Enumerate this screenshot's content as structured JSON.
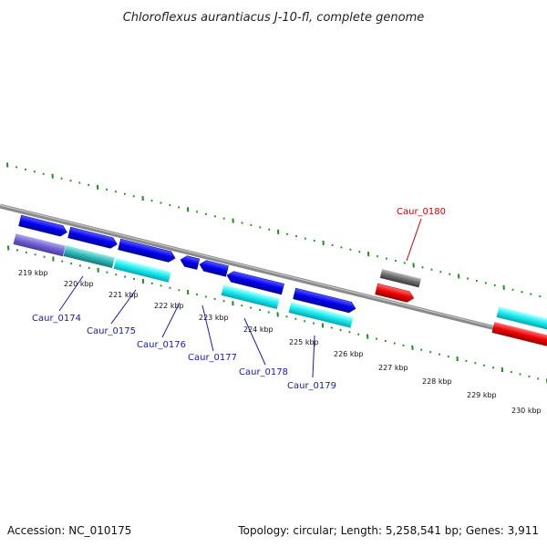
{
  "title": "Chloroflexus aurantiacus J-10-fl, complete genome",
  "footer": {
    "accession": "Accession: NC_010175",
    "summary": "Topology: circular; Length: 5,258,541 bp; Genes: 3,911"
  },
  "colors": {
    "backbone": "#8a8a8a",
    "ticks": "#1e8c1e",
    "label_blue": "#1a1aa8",
    "label_red": "#cc0000"
  },
  "tick_labels": [
    "219 kbp",
    "220 kbp",
    "221 kbp",
    "222 kbp",
    "223 kbp",
    "224 kbp",
    "225 kbp",
    "226 kbp",
    "227 kbp",
    "228 kbp",
    "229 kbp",
    "230 kbp"
  ],
  "gene_labels": [
    {
      "text": "Caur_0174",
      "color": "#1a1aa8"
    },
    {
      "text": "Caur_0175",
      "color": "#1a1aa8"
    },
    {
      "text": "Caur_0176",
      "color": "#1a1aa8"
    },
    {
      "text": "Caur_0177",
      "color": "#1a1aa8"
    },
    {
      "text": "Caur_0178",
      "color": "#1a1aa8"
    },
    {
      "text": "Caur_0179",
      "color": "#1a1aa8"
    },
    {
      "text": "Caur_0180",
      "color": "#cc0000"
    }
  ]
}
